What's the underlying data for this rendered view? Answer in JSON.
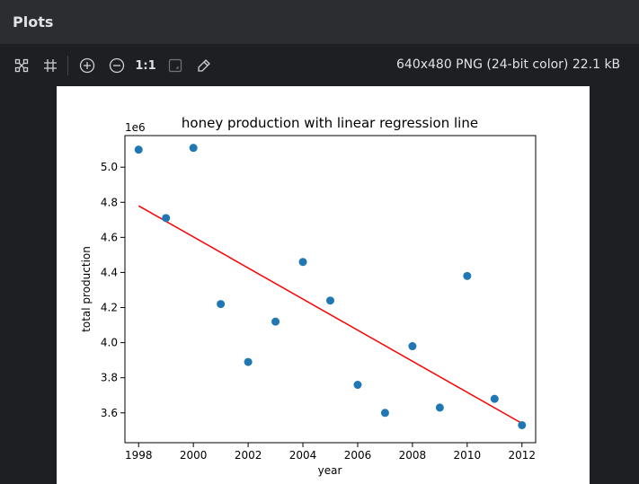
{
  "panel": {
    "title": "Plots"
  },
  "toolbar": {
    "items": [
      {
        "name": "fit-content-icon",
        "label": ""
      },
      {
        "name": "grid-icon",
        "label": ""
      },
      {
        "name": "zoom-in-icon",
        "label": ""
      },
      {
        "name": "zoom-out-icon",
        "label": ""
      },
      {
        "name": "actual-size-button",
        "label": "1:1"
      },
      {
        "name": "background-icon",
        "label": ""
      },
      {
        "name": "color-picker-icon",
        "label": ""
      }
    ],
    "actual_size_label": "1:1",
    "image_info": "640x480 PNG (24-bit color) 22.1 kB"
  },
  "colors": {
    "points": "#1f77b4",
    "regression_line": "#ff0000",
    "panel_bg": "#1e1f22",
    "header_bg": "#2b2d30"
  },
  "chart_data": {
    "type": "scatter",
    "title": "honey production with linear regression line",
    "xlabel": "year",
    "ylabel": "total production",
    "y_offset_label": "1e6",
    "xlim": [
      1997.5,
      2012.5
    ],
    "ylim": [
      3.43,
      5.18
    ],
    "xticks": [
      1998,
      2000,
      2002,
      2004,
      2006,
      2008,
      2010,
      2012
    ],
    "xtick_labels": [
      "1998",
      "2000",
      "2002",
      "2004",
      "2006",
      "2008",
      "2010",
      "2012"
    ],
    "yticks": [
      3.6,
      3.8,
      4.0,
      4.2,
      4.4,
      4.6,
      4.8,
      5.0
    ],
    "ytick_labels": [
      "3.6",
      "3.8",
      "4.0",
      "4.2",
      "4.4",
      "4.6",
      "4.8",
      "5.0"
    ],
    "grid": false,
    "series": [
      {
        "kind": "points",
        "x": [
          1998,
          1999,
          2000,
          2001,
          2002,
          2003,
          2004,
          2005,
          2006,
          2007,
          2008,
          2009,
          2010,
          2011,
          2012
        ],
        "y": [
          5.1,
          4.71,
          5.11,
          4.22,
          3.89,
          4.12,
          4.46,
          4.24,
          3.76,
          3.6,
          3.98,
          3.63,
          4.38,
          3.68,
          3.53
        ]
      },
      {
        "kind": "line",
        "x": [
          1998,
          2012
        ],
        "y": [
          4.78,
          3.54
        ]
      }
    ]
  }
}
